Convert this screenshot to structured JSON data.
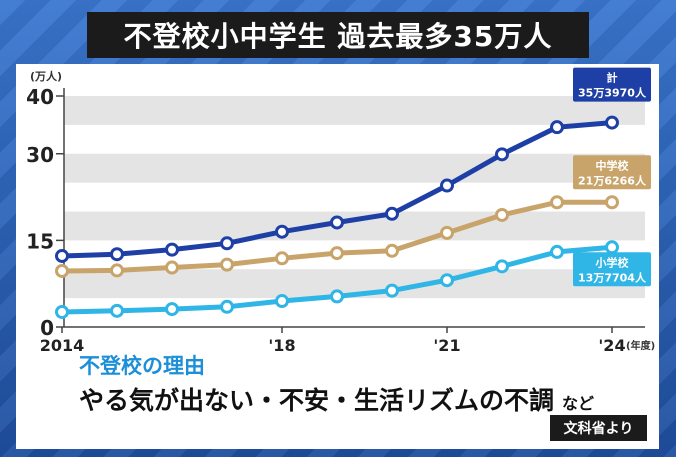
{
  "header": {
    "title": "不登校小中学生 過去最多35万人"
  },
  "chart_data": {
    "type": "line",
    "x": [
      2014,
      2015,
      2016,
      2017,
      2018,
      2019,
      2020,
      2021,
      2022,
      2023,
      2024
    ],
    "x_tick_labels": [
      {
        "x": 2014,
        "label": "2014"
      },
      {
        "x": 2018,
        "label": "'18"
      },
      {
        "x": 2021,
        "label": "'21"
      },
      {
        "x": 2024,
        "label": "'24"
      }
    ],
    "x_unit_label": "(年度)",
    "y_unit_label": "(万人)",
    "yticks": [
      0,
      15,
      30,
      40
    ],
    "ylim": [
      0,
      40
    ],
    "grid": "horizontal bands",
    "series": [
      {
        "name": "計",
        "value_label": "35万3970人",
        "color": "#1e3fa6",
        "values": [
          12.3,
          12.6,
          13.4,
          14.5,
          16.5,
          18.1,
          19.6,
          24.5,
          29.9,
          34.6,
          35.4
        ]
      },
      {
        "name": "中学校",
        "value_label": "21万6266人",
        "color": "#c9a46a",
        "values": [
          9.7,
          9.8,
          10.3,
          10.8,
          11.9,
          12.8,
          13.2,
          16.3,
          19.4,
          21.6,
          21.6
        ]
      },
      {
        "name": "小学校",
        "value_label": "13万7704人",
        "color": "#2fb5e6",
        "values": [
          2.6,
          2.8,
          3.1,
          3.5,
          4.5,
          5.3,
          6.3,
          8.1,
          10.5,
          13.0,
          13.8
        ]
      }
    ]
  },
  "reason": {
    "label": "不登校の理由",
    "text": "やる気が出ない・不安・生活リズムの不調",
    "suffix": "など"
  },
  "source": "文科省より"
}
